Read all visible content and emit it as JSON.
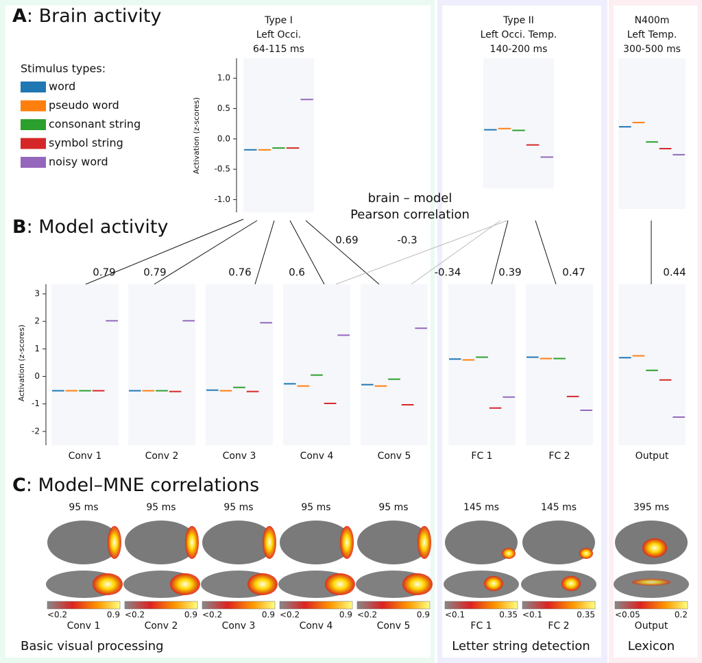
{
  "sections": {
    "A": {
      "letter": "A",
      "title": ": Brain activity"
    },
    "B": {
      "letter": "B",
      "title": ": Model activity"
    },
    "C": {
      "letter": "C",
      "title": ": Model–MNE correlations"
    }
  },
  "legend": {
    "title": "Stimulus types:",
    "items": [
      {
        "name": "word",
        "color": "#1f77b4"
      },
      {
        "name": "pseudo word",
        "color": "#ff7f0e"
      },
      {
        "name": "consonant string",
        "color": "#2ca02c"
      },
      {
        "name": "symbol string",
        "color": "#d62728"
      },
      {
        "name": "noisy word",
        "color": "#9467bd"
      }
    ]
  },
  "brain": {
    "ylabel": "Activation (z-scores)",
    "ylim": [
      -1.21,
      1.33
    ],
    "yticks": [
      {
        "value": 1,
        "label": "1.0"
      },
      0.5,
      {
        "value": 0,
        "label": "0.0"
      },
      -0.5,
      {
        "value": -1,
        "label": "-1.0"
      }
    ],
    "plots": [
      {
        "title": [
          "Type I",
          "Left Occi.",
          "64-115 ms"
        ],
        "means": [
          -0.18,
          -0.18,
          -0.15,
          -0.15,
          0.65
        ]
      },
      {
        "title": [
          "Type II",
          "Left Occi. Temp.",
          "140-200 ms"
        ],
        "means": [
          0.15,
          0.17,
          0.14,
          -0.1,
          -0.3
        ]
      },
      {
        "title": [
          "N400m",
          "Left Temp.",
          "300-500 ms"
        ],
        "means": [
          0.2,
          0.27,
          -0.05,
          -0.16,
          -0.26
        ]
      }
    ]
  },
  "model": {
    "ylabel": "Activation (z-scores)",
    "ylim": [
      -2.5,
      3.35
    ],
    "yticks": [
      -2,
      -1,
      0,
      1,
      2,
      3
    ],
    "plots": [
      {
        "name": "Conv 1",
        "means": [
          -0.52,
          -0.52,
          -0.52,
          -0.52,
          2.02
        ]
      },
      {
        "name": "Conv 2",
        "means": [
          -0.52,
          -0.52,
          -0.52,
          -0.55,
          2.02
        ]
      },
      {
        "name": "Conv 3",
        "means": [
          -0.5,
          -0.52,
          -0.4,
          -0.55,
          1.95
        ]
      },
      {
        "name": "Conv 4",
        "means": [
          -0.27,
          -0.35,
          0.05,
          -0.98,
          1.5
        ]
      },
      {
        "name": "Conv 5",
        "means": [
          -0.3,
          -0.35,
          -0.1,
          -1.03,
          1.75
        ]
      },
      {
        "name": "FC 1",
        "means": [
          0.63,
          0.6,
          0.7,
          -1.15,
          -0.75
        ]
      },
      {
        "name": "FC 2",
        "means": [
          0.7,
          0.65,
          0.65,
          -0.73,
          -1.23
        ]
      },
      {
        "name": "Output",
        "means": [
          0.68,
          0.75,
          0.22,
          -0.13,
          -1.48
        ]
      }
    ]
  },
  "correlation": {
    "title": [
      "brain – model",
      "Pearson correlation"
    ],
    "links": [
      {
        "brain": 0,
        "model": 0,
        "r": 0.79
      },
      {
        "brain": 0,
        "model": 1,
        "r": 0.79
      },
      {
        "brain": 0,
        "model": 2,
        "r": 0.76
      },
      {
        "brain": 0,
        "model": 3,
        "r": 0.6
      },
      {
        "brain": 0,
        "model": 4,
        "r": 0.69
      },
      {
        "brain": 1,
        "model": 3,
        "r": -0.3
      },
      {
        "brain": 1,
        "model": 4,
        "r": -0.34
      },
      {
        "brain": 1,
        "model": 5,
        "r": 0.39
      },
      {
        "brain": 1,
        "model": 6,
        "r": 0.47
      },
      {
        "brain": 2,
        "model": 7,
        "r": 0.44
      }
    ]
  },
  "mne": [
    {
      "time": "95 ms",
      "cmin": "<0.2",
      "cmax": 0.9,
      "name": "Conv 1"
    },
    {
      "time": "95 ms",
      "cmin": "<0.2",
      "cmax": 0.9,
      "name": "Conv 2"
    },
    {
      "time": "95 ms",
      "cmin": "<0.2",
      "cmax": 0.9,
      "name": "Conv 3"
    },
    {
      "time": "95 ms",
      "cmin": "<0.2",
      "cmax": 0.9,
      "name": "Conv 4"
    },
    {
      "time": "95 ms",
      "cmin": "<0.2",
      "cmax": 0.9,
      "name": "Conv 5"
    },
    {
      "time": "145 ms",
      "cmin": "<0.1",
      "cmax": 0.35,
      "name": "FC 1"
    },
    {
      "time": "145 ms",
      "cmin": "<0.1",
      "cmax": 0.35,
      "name": "FC 2"
    },
    {
      "time": "395 ms",
      "cmin": "<0.05",
      "cmax": 0.2,
      "name": "Output"
    }
  ],
  "groups": [
    {
      "label": "Basic visual processing",
      "color": "#33e0a0"
    },
    {
      "label": "Letter string detection",
      "color": "#6a6af0"
    },
    {
      "label": "Lexicon",
      "color": "#f0708c"
    }
  ]
}
